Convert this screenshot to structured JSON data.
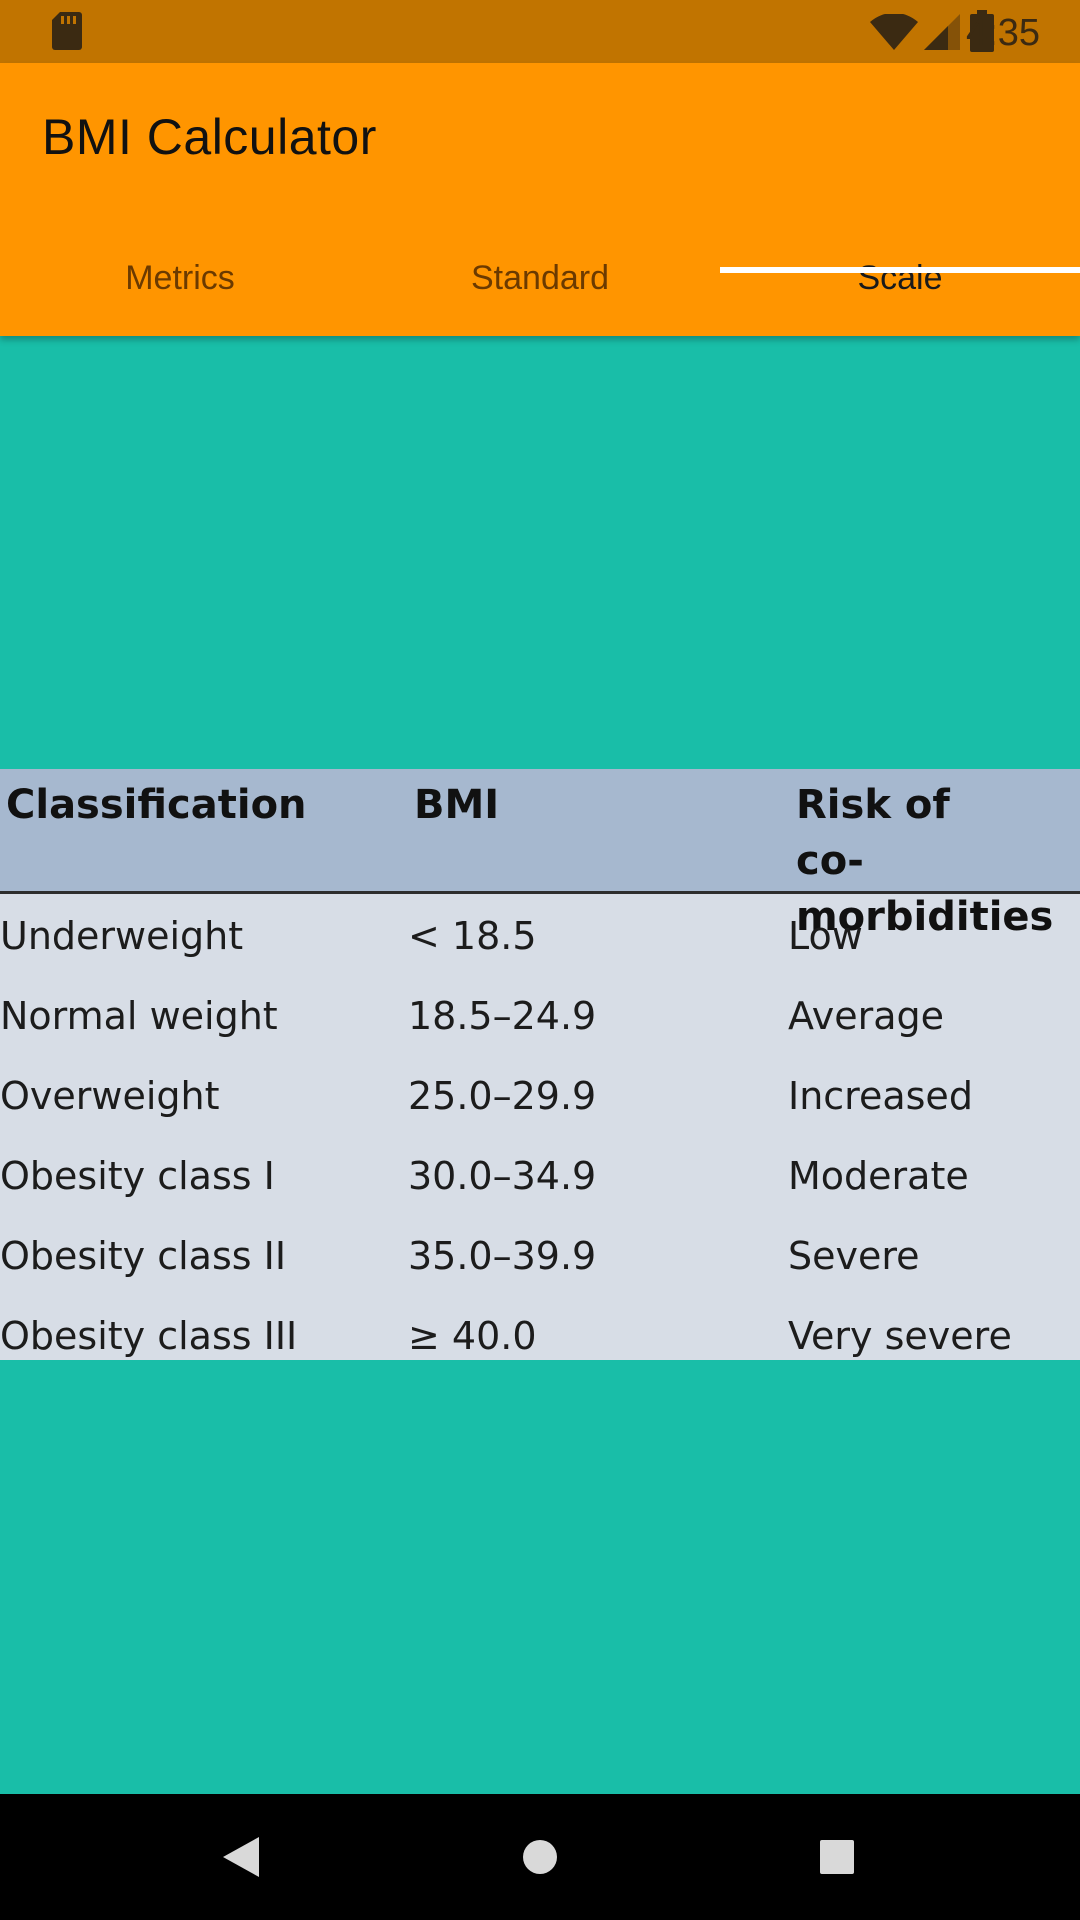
{
  "status_bar": {
    "time": "4:35",
    "icons": [
      "sd-card-icon",
      "wifi-icon",
      "signal-icon",
      "battery-icon"
    ]
  },
  "app_bar": {
    "title": "BMI Calculator",
    "tabs": [
      {
        "label": "Metrics",
        "active": false
      },
      {
        "label": "Standard",
        "active": false
      },
      {
        "label": "Scale",
        "active": true
      }
    ]
  },
  "scale_table": {
    "headers": {
      "classification": "Classification",
      "bmi": "BMI",
      "risk_line1": "Risk of",
      "risk_line2": "co-morbidities"
    },
    "rows": [
      {
        "classification": "Underweight",
        "bmi": "< 18.5",
        "risk": "Low"
      },
      {
        "classification": "Normal weight",
        "bmi": "18.5–24.9",
        "risk": "Average"
      },
      {
        "classification": "Overweight",
        "bmi": "25.0–29.9",
        "risk": "Increased"
      },
      {
        "classification": "Obesity class I",
        "bmi": "30.0–34.9",
        "risk": "Moderate"
      },
      {
        "classification": "Obesity class II",
        "bmi": "35.0–39.9",
        "risk": "Severe"
      },
      {
        "classification": "Obesity class III",
        "bmi": "≥ 40.0",
        "risk": "Very severe"
      }
    ]
  },
  "nav_bar": {
    "buttons": [
      "back-icon",
      "home-icon",
      "recent-apps-icon"
    ]
  },
  "colors": {
    "status_bar": "#c17400",
    "app_bar": "#ff9500",
    "content_background": "#19bea8",
    "table_header": "#a6b8cf",
    "table_body": "#d7dde6",
    "tab_indicator": "#ffffff"
  }
}
